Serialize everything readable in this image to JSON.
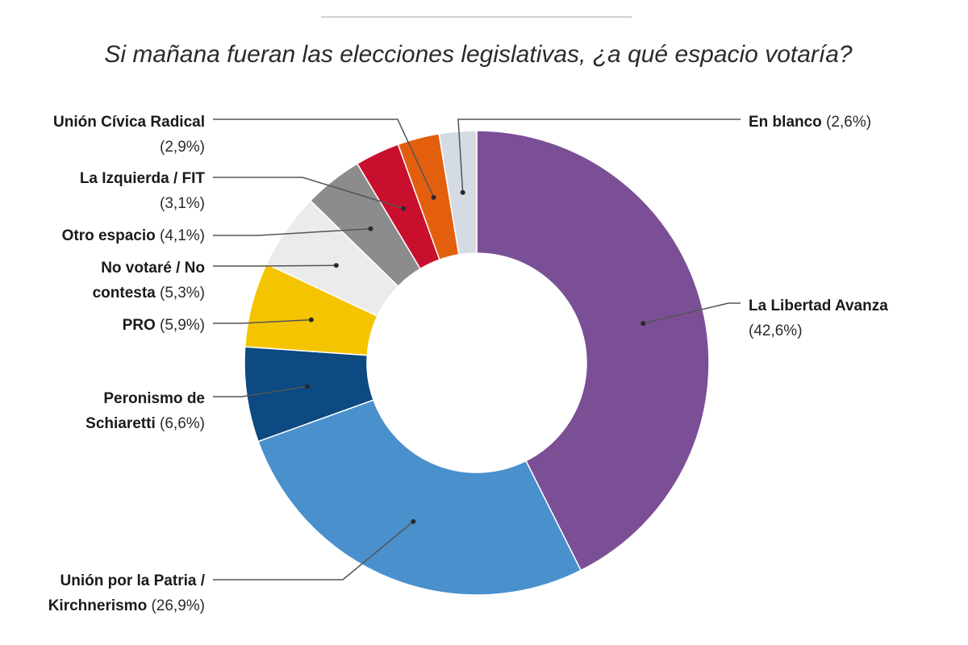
{
  "chart_data": {
    "type": "pie",
    "variant": "donut",
    "title": "Si mañana fueran las elecciones legislativas, ¿a qué espacio votaría?",
    "slices": [
      {
        "name": "La Libertad Avanza",
        "value": 42.6,
        "percent_label": "(42,6%)",
        "color": "#7b4f95",
        "lines": [
          [
            {
              "text": "La Libertad Avanza",
              "bold": true
            }
          ],
          [
            {
              "text": "(42,6%)",
              "bold": false
            }
          ]
        ]
      },
      {
        "name": "Unión por la Patria / Kirchnerismo",
        "value": 26.9,
        "percent_label": "(26,9%)",
        "color": "#4990cd",
        "lines": [
          [
            {
              "text": "Unión por la Patria /",
              "bold": true
            }
          ],
          [
            {
              "text": "Kirchnerismo",
              "bold": true
            },
            {
              "text": " (26,9%)",
              "bold": false
            }
          ]
        ]
      },
      {
        "name": "Peronismo de Schiaretti",
        "value": 6.6,
        "percent_label": "(6,6%)",
        "color": "#0d4a82",
        "lines": [
          [
            {
              "text": "Peronismo de",
              "bold": true
            }
          ],
          [
            {
              "text": "Schiaretti",
              "bold": true
            },
            {
              "text": " (6,6%)",
              "bold": false
            }
          ]
        ]
      },
      {
        "name": "PRO",
        "value": 5.9,
        "percent_label": "(5,9%)",
        "color": "#f5c400",
        "lines": [
          [
            {
              "text": "PRO",
              "bold": true
            },
            {
              "text": " (5,9%)",
              "bold": false
            }
          ]
        ]
      },
      {
        "name": "No votaré / No contesta",
        "value": 5.3,
        "percent_label": "(5,3%)",
        "color": "#ebebeb",
        "lines": [
          [
            {
              "text": "No votaré / No",
              "bold": true
            }
          ],
          [
            {
              "text": "contesta",
              "bold": true
            },
            {
              "text": " (5,3%)",
              "bold": false
            }
          ]
        ]
      },
      {
        "name": "Otro espacio",
        "value": 4.1,
        "percent_label": "(4,1%)",
        "color": "#8c8c8c",
        "lines": [
          [
            {
              "text": "Otro espacio",
              "bold": true
            },
            {
              "text": " (4,1%)",
              "bold": false
            }
          ]
        ]
      },
      {
        "name": "La Izquierda / FIT",
        "value": 3.1,
        "percent_label": "(3,1%)",
        "color": "#c8102e",
        "lines": [
          [
            {
              "text": "La Izquierda / FIT",
              "bold": true
            }
          ],
          [
            {
              "text": "(3,1%)",
              "bold": false
            }
          ]
        ]
      },
      {
        "name": "Unión Cívica Radical",
        "value": 2.9,
        "percent_label": "(2,9%)",
        "color": "#e35f0d",
        "lines": [
          [
            {
              "text": "Unión Cívica Radical",
              "bold": true
            }
          ],
          [
            {
              "text": "(2,9%)",
              "bold": false
            }
          ]
        ]
      },
      {
        "name": "En blanco",
        "value": 2.6,
        "percent_label": "(2,6%)",
        "color": "#d4dbe3",
        "lines": [
          [
            {
              "text": "En blanco",
              "bold": true
            },
            {
              "text": " (2,6%)",
              "bold": false
            }
          ]
        ]
      }
    ],
    "legend_placement": "callout labels with leader lines"
  }
}
